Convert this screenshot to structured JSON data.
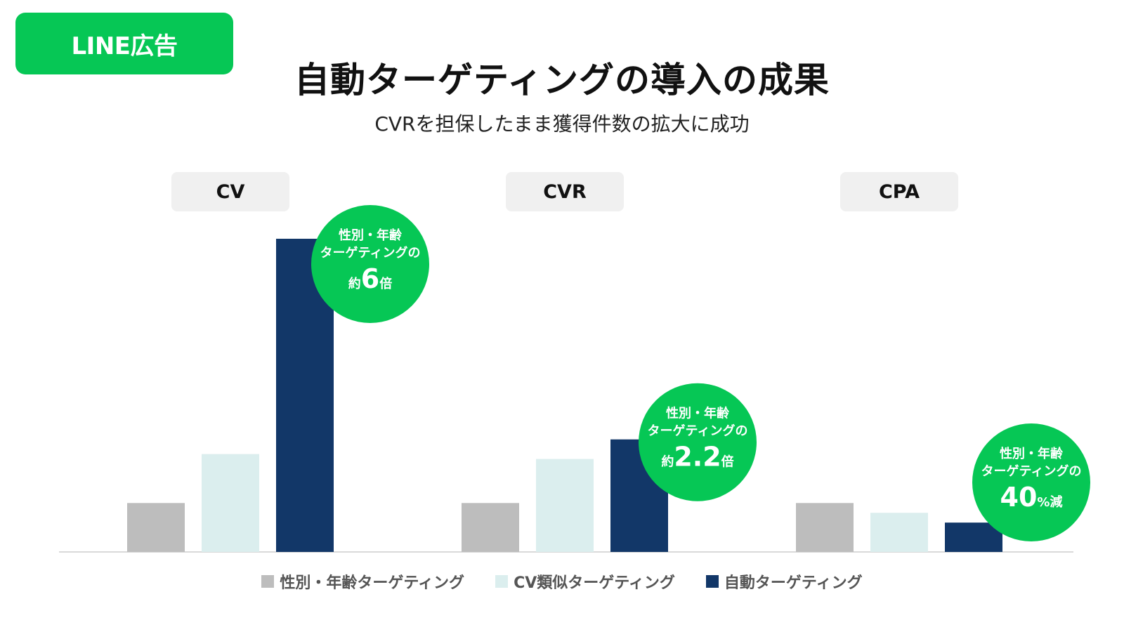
{
  "header": {
    "badge": "LINE広告",
    "title": "自動ターゲティングの導入の成果",
    "subtitle": "CVRを担保したまま獲得件数の拡大に成功"
  },
  "colors": {
    "accent": "#06c755",
    "axis": "#d9d9d9",
    "label_bg": "#f0f0f0"
  },
  "chart_data": {
    "type": "bar",
    "categories": [
      "CV",
      "CVR",
      "CPA"
    ],
    "series": [
      {
        "name": "性別・年齢ターゲティング",
        "color": "#bdbdbd",
        "values": [
          1,
          1,
          1
        ]
      },
      {
        "name": "CV類似ターゲティング",
        "color": "#dbeeee",
        "values": [
          2,
          1.9,
          0.8
        ]
      },
      {
        "name": "自動ターゲティング",
        "color": "#123768",
        "values": [
          6.4,
          2.3,
          0.6
        ]
      }
    ],
    "ylim": [
      0,
      6.4
    ],
    "grid": false,
    "legend": "bottom",
    "annotations": [
      {
        "category": "CV",
        "line1": "性別・年齢",
        "line2": "ターゲティングの",
        "prefix": "約",
        "value": "6",
        "suffix": "倍"
      },
      {
        "category": "CVR",
        "line1": "性別・年齢",
        "line2": "ターゲティングの",
        "prefix": "約",
        "value": "2.2",
        "suffix": "倍"
      },
      {
        "category": "CPA",
        "line1": "性別・年齢",
        "line2": "ターゲティングの",
        "prefix": "",
        "value": "40",
        "suffix": "%減"
      }
    ]
  }
}
